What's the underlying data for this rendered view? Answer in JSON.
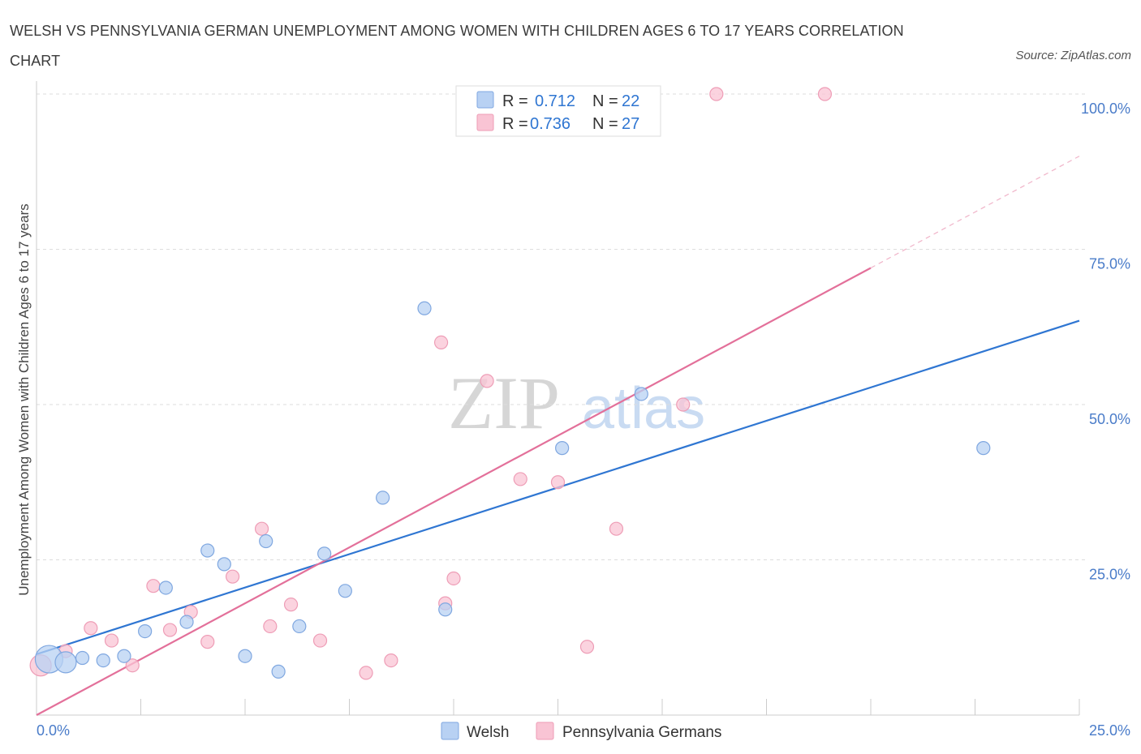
{
  "header": {
    "title": "WELSH VS PENNSYLVANIA GERMAN UNEMPLOYMENT AMONG WOMEN WITH CHILDREN AGES 6 TO 17 YEARS CORRELATION CHART",
    "source": "Source: ZipAtlas.com"
  },
  "watermark": {
    "zip": "ZIP",
    "atlas": "atlas"
  },
  "legend": {
    "r_label": "R =",
    "n_label": "N =",
    "welsh": {
      "r": "0.712",
      "n": "22"
    },
    "pg": {
      "r": "0.736",
      "n": "27"
    }
  },
  "bottom_legend": {
    "welsh": "Welsh",
    "pg": "Pennsylvania Germans"
  },
  "colors": {
    "welsh_fill": "#b8d1f3",
    "welsh_stroke": "#7fa7e0",
    "welsh_line": "#2f76d2",
    "pg_fill": "#f9c4d4",
    "pg_stroke": "#ee9db6",
    "pg_line": "#e3709a",
    "grid": "#dddddd",
    "tick_text": "#4a7cc9"
  },
  "chart_data": {
    "type": "scatter",
    "title": "WELSH VS PENNSYLVANIA GERMAN UNEMPLOYMENT AMONG WOMEN WITH CHILDREN AGES 6 TO 17 YEARS CORRELATION CHART",
    "xlabel": "",
    "ylabel": "Unemployment Among Women with Children Ages 6 to 17 years",
    "xlim": [
      0,
      25
    ],
    "ylim": [
      0,
      100
    ],
    "x_tick_labels": [
      "0.0%",
      "25.0%"
    ],
    "y_ticks": [
      25,
      50,
      75,
      100
    ],
    "y_tick_labels": [
      "25.0%",
      "50.0%",
      "75.0%",
      "100.0%"
    ],
    "grid": true,
    "legend_position": "top-center",
    "series": [
      {
        "name": "Welsh",
        "r": 0.712,
        "n": 22,
        "trend": {
          "x0": 0,
          "y0": 9.8,
          "x1": 25,
          "y1": 63.5,
          "solid_until": 25
        },
        "points": [
          {
            "x": 0.3,
            "y": 9.0,
            "size": "large"
          },
          {
            "x": 0.7,
            "y": 8.5,
            "size": "medium"
          },
          {
            "x": 1.1,
            "y": 9.2
          },
          {
            "x": 1.6,
            "y": 8.8
          },
          {
            "x": 2.1,
            "y": 9.5
          },
          {
            "x": 2.6,
            "y": 13.5
          },
          {
            "x": 3.1,
            "y": 20.5
          },
          {
            "x": 3.6,
            "y": 15.0
          },
          {
            "x": 4.1,
            "y": 26.5
          },
          {
            "x": 4.5,
            "y": 24.3
          },
          {
            "x": 5.0,
            "y": 9.5
          },
          {
            "x": 5.5,
            "y": 28.0
          },
          {
            "x": 5.8,
            "y": 7.0
          },
          {
            "x": 6.3,
            "y": 14.3
          },
          {
            "x": 6.9,
            "y": 26.0
          },
          {
            "x": 7.4,
            "y": 20.0
          },
          {
            "x": 8.3,
            "y": 35.0
          },
          {
            "x": 9.3,
            "y": 65.5
          },
          {
            "x": 9.8,
            "y": 17.0
          },
          {
            "x": 12.6,
            "y": 43.0
          },
          {
            "x": 14.5,
            "y": 51.7
          },
          {
            "x": 22.7,
            "y": 43.0
          }
        ]
      },
      {
        "name": "Pennsylvania Germans",
        "r": 0.736,
        "n": 27,
        "trend": {
          "x0": 0,
          "y0": 0,
          "x1": 25,
          "y1": 90.0,
          "solid_until": 20
        },
        "points": [
          {
            "x": 0.1,
            "y": 8.0,
            "size": "medium"
          },
          {
            "x": 0.7,
            "y": 10.3
          },
          {
            "x": 1.3,
            "y": 14.0
          },
          {
            "x": 1.8,
            "y": 12.0
          },
          {
            "x": 2.3,
            "y": 8.0
          },
          {
            "x": 2.8,
            "y": 20.8
          },
          {
            "x": 3.2,
            "y": 13.7
          },
          {
            "x": 3.7,
            "y": 16.6
          },
          {
            "x": 4.1,
            "y": 11.8
          },
          {
            "x": 4.7,
            "y": 22.3
          },
          {
            "x": 5.4,
            "y": 30.0
          },
          {
            "x": 5.6,
            "y": 14.3
          },
          {
            "x": 6.1,
            "y": 17.8
          },
          {
            "x": 6.8,
            "y": 12.0
          },
          {
            "x": 7.9,
            "y": 6.8
          },
          {
            "x": 8.5,
            "y": 8.8
          },
          {
            "x": 9.7,
            "y": 60.0
          },
          {
            "x": 9.8,
            "y": 18.0
          },
          {
            "x": 10.0,
            "y": 22.0
          },
          {
            "x": 10.8,
            "y": 53.8
          },
          {
            "x": 11.6,
            "y": 38.0
          },
          {
            "x": 12.5,
            "y": 37.5
          },
          {
            "x": 13.2,
            "y": 11.0
          },
          {
            "x": 13.9,
            "y": 30.0
          },
          {
            "x": 15.5,
            "y": 50.0
          },
          {
            "x": 16.3,
            "y": 100.0
          },
          {
            "x": 18.9,
            "y": 100.0
          }
        ]
      }
    ]
  }
}
